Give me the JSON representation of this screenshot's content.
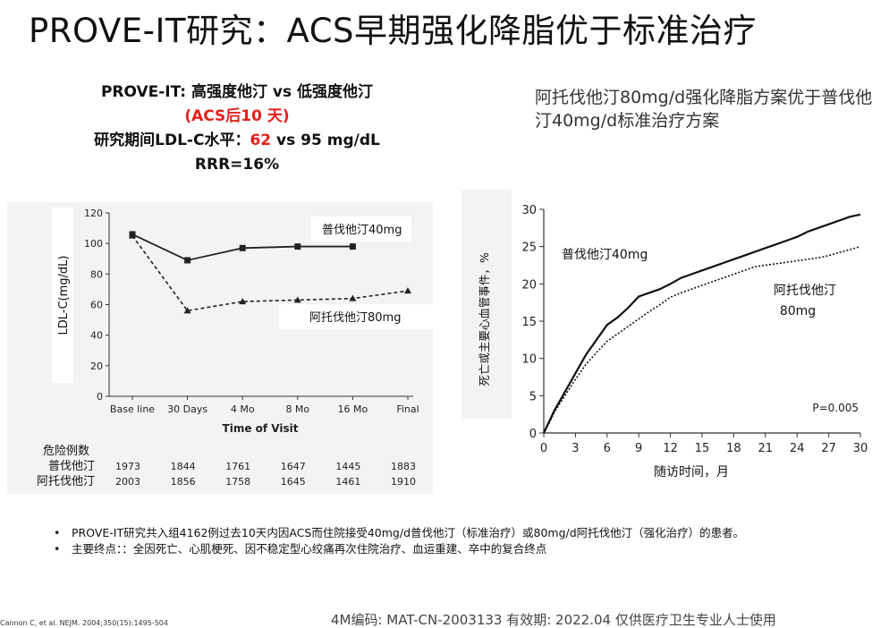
{
  "slide": {
    "title": "PROVE-IT研究：ACS早期强化降脂优于标准治疗",
    "summary": {
      "line1": "PROVE-IT: 高强度他汀 vs 低强度他汀",
      "line2": "(ACS后10 天)",
      "line3_prefix": "研究期间LDL-C水平：",
      "line3_red": "62",
      "line3_suffix": " vs 95 mg/dL",
      "line4": "RRR=16%"
    },
    "right_note": "阿托伐他汀80mg/d强化降脂方案优于普伐他汀40mg/d标准治疗方案",
    "bullets": [
      "PROVE-IT研究共入组4162例过去10天内因ACS而住院接受40mg/d普伐他汀（标准治疗）或80mg/d阿托伐他汀（强化治疗）的患者。",
      "主要终点：：全因死亡、心肌梗死、因不稳定型心绞痛再次住院治疗、血运重建、卒中的复合终点"
    ],
    "footer_ref": "Cannon C, et al. NEJM. 2004;350(15):1495-504",
    "footer_code": "4M编码:    MAT-CN-2003133   有效期:  2022.04   仅供医疗卫生专业人士使用",
    "colors": {
      "red": "#e3201b",
      "panel": "#f3f3f3"
    }
  },
  "chart_data": [
    {
      "type": "line",
      "title": "",
      "xlabel": "Time of Visit",
      "ylabel": "LDL-C(mg/dL)",
      "categories": [
        "Base line",
        "30 Days",
        "4 Mo",
        "8 Mo",
        "16 Mo",
        "Final"
      ],
      "ylim": [
        0,
        120
      ],
      "yticks": [
        0,
        20,
        40,
        60,
        80,
        100,
        120
      ],
      "series": [
        {
          "name": "普伐他汀40mg",
          "style": "solid",
          "marker": "square",
          "values": [
            106,
            89,
            97,
            98,
            98,
            null
          ]
        },
        {
          "name": "阿托伐他汀80mg",
          "style": "dashed",
          "marker": "triangle",
          "values": [
            105,
            56,
            62,
            63,
            64,
            69
          ]
        }
      ],
      "risk_table": {
        "header": "危险例数",
        "rows": [
          {
            "label": "普伐他汀",
            "values": [
              "1973",
              "1844",
              "1761",
              "1647",
              "1445",
              "1883"
            ]
          },
          {
            "label": "阿托伐他汀",
            "values": [
              "2003",
              "1856",
              "1758",
              "1645",
              "1461",
              "1910"
            ]
          }
        ]
      }
    },
    {
      "type": "line",
      "title": "",
      "xlabel": "随访时间，月",
      "ylabel": "死亡或主要心血管事件，%",
      "xlim": [
        0,
        30
      ],
      "ylim": [
        0,
        30
      ],
      "xticks": [
        0,
        3,
        6,
        9,
        12,
        15,
        18,
        21,
        24,
        27,
        30
      ],
      "yticks": [
        0,
        5,
        10,
        15,
        20,
        25,
        30
      ],
      "annotation": "P=0.005",
      "series": [
        {
          "name": "普伐他汀40mg",
          "style": "solid",
          "x": [
            0,
            0.5,
            1,
            2,
            3,
            4,
            5,
            6,
            7,
            8,
            9,
            10,
            11,
            12,
            13,
            14,
            15,
            16,
            17,
            18,
            19,
            20,
            21,
            22,
            23,
            24,
            25,
            26,
            27,
            28,
            29,
            30
          ],
          "y": [
            0,
            1.5,
            3,
            5.5,
            8,
            10.5,
            12.5,
            14.5,
            15.5,
            16.8,
            18.3,
            18.8,
            19.3,
            20,
            20.8,
            21.3,
            21.8,
            22.3,
            22.8,
            23.3,
            23.8,
            24.3,
            24.8,
            25.3,
            25.8,
            26.3,
            27,
            27.5,
            28,
            28.5,
            29,
            29.3
          ]
        },
        {
          "name": "阿托伐他汀80mg",
          "style": "dotted",
          "x": [
            0,
            0.5,
            1,
            2,
            3,
            4,
            5,
            6,
            7,
            8,
            9,
            10,
            11,
            12,
            13,
            14,
            15,
            16,
            17,
            18,
            19,
            20,
            21,
            22,
            23,
            24,
            25,
            26,
            27,
            28,
            29,
            30
          ],
          "y": [
            0,
            1.3,
            2.8,
            5,
            7.2,
            9.2,
            10.8,
            12.3,
            13.3,
            14.3,
            15.3,
            16.3,
            17.2,
            18.2,
            18.8,
            19.3,
            19.8,
            20.3,
            20.8,
            21.3,
            21.8,
            22.3,
            22.5,
            22.7,
            22.9,
            23.1,
            23.3,
            23.5,
            23.8,
            24.2,
            24.6,
            25
          ]
        }
      ]
    }
  ]
}
